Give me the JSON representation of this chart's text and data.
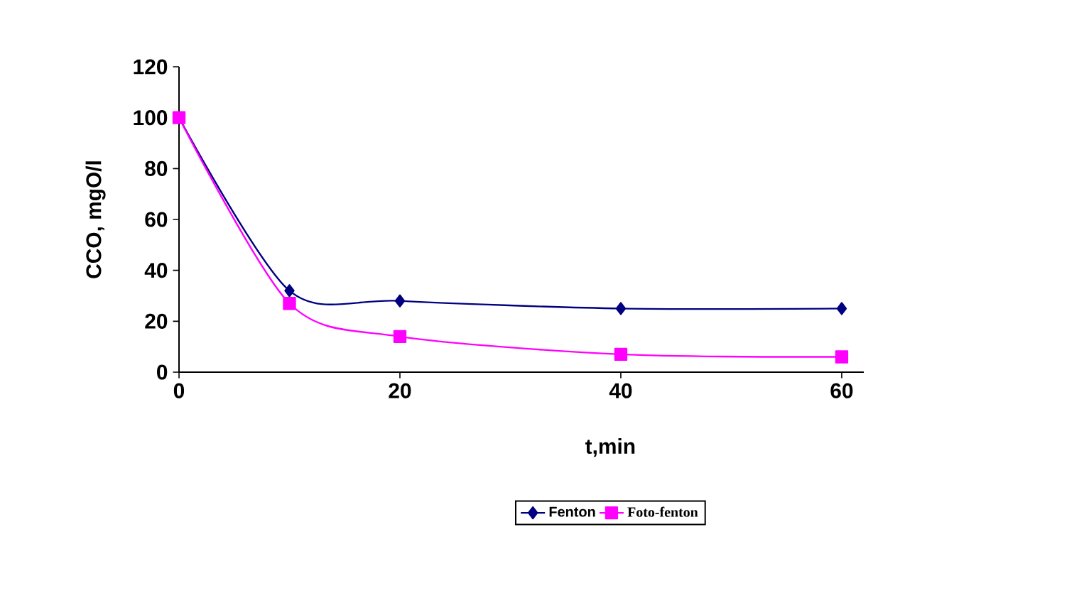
{
  "chart_data": {
    "type": "line",
    "xlabel": "t,min",
    "ylabel": "CCO, mgO/l",
    "x": [
      0,
      10,
      20,
      40,
      60
    ],
    "series": [
      {
        "name": "Fenton",
        "color": "#000080",
        "marker": "diamond",
        "values": [
          100,
          32,
          28,
          25,
          25
        ]
      },
      {
        "name": "Foto-fenton",
        "color": "#ff00ff",
        "marker": "square",
        "values": [
          100,
          27,
          14,
          7,
          6
        ]
      }
    ],
    "xlim": [
      0,
      62
    ],
    "xticks": [
      0,
      20,
      40,
      60
    ],
    "ylim": [
      0,
      120
    ],
    "yticks": [
      0,
      20,
      40,
      60,
      80,
      100,
      120
    ],
    "grid": false,
    "legend": "bottom",
    "line_style": "solid"
  }
}
